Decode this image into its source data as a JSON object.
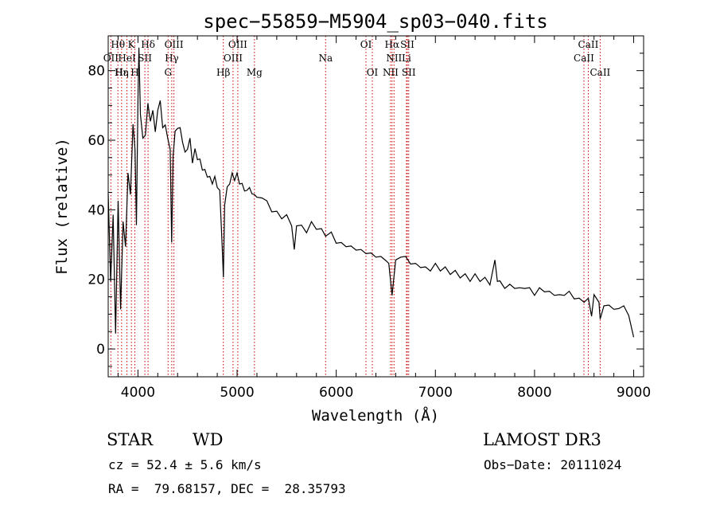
{
  "chart_data": {
    "type": "line",
    "title": "spec−55859−M5904_sp03−040.fits",
    "xlabel": "Wavelength (Å)",
    "ylabel": "Flux (relative)",
    "xlim": [
      3700,
      9100
    ],
    "ylim": [
      -8,
      90
    ],
    "x_ticks": [
      4000,
      5000,
      6000,
      7000,
      8000,
      9000
    ],
    "y_ticks": [
      0,
      20,
      40,
      60,
      80
    ],
    "series": [
      {
        "name": "spectrum",
        "x": [
          3700,
          3725,
          3750,
          3775,
          3800,
          3825,
          3850,
          3875,
          3900,
          3925,
          3950,
          3970,
          3985,
          4000,
          4010,
          4025,
          4050,
          4075,
          4100,
          4125,
          4150,
          4175,
          4200,
          4225,
          4250,
          4275,
          4300,
          4325,
          4340,
          4355,
          4375,
          4400,
          4425,
          4450,
          4475,
          4500,
          4525,
          4550,
          4575,
          4600,
          4625,
          4650,
          4675,
          4700,
          4725,
          4750,
          4775,
          4800,
          4825,
          4850,
          4862,
          4875,
          4900,
          4925,
          4950,
          4975,
          5000,
          5025,
          5050,
          5075,
          5100,
          5125,
          5150,
          5175,
          5200,
          5250,
          5300,
          5350,
          5400,
          5450,
          5500,
          5550,
          5577,
          5600,
          5650,
          5700,
          5750,
          5800,
          5850,
          5893,
          5950,
          6000,
          6050,
          6100,
          6150,
          6200,
          6250,
          6300,
          6350,
          6400,
          6450,
          6500,
          6530,
          6563,
          6600,
          6650,
          6700,
          6750,
          6800,
          6850,
          6900,
          6950,
          7000,
          7050,
          7100,
          7150,
          7200,
          7250,
          7300,
          7350,
          7400,
          7450,
          7500,
          7550,
          7600,
          7625,
          7650,
          7700,
          7750,
          7800,
          7850,
          7900,
          7950,
          8000,
          8050,
          8100,
          8150,
          8200,
          8250,
          8300,
          8350,
          8400,
          8450,
          8500,
          8542,
          8575,
          8600,
          8650,
          8662,
          8700,
          8750,
          8800,
          8850,
          8900,
          8950,
          9000
        ],
        "y": [
          44,
          20,
          38,
          5,
          42,
          12,
          36,
          30,
          50,
          45,
          64,
          58,
          35,
          72,
          86,
          68,
          60,
          62,
          70,
          66,
          68,
          63,
          68,
          72,
          63,
          65,
          60,
          58,
          30,
          56,
          62,
          64,
          63,
          60,
          56,
          58,
          60,
          54,
          57,
          55,
          54,
          52,
          51,
          50,
          49,
          48,
          49,
          47,
          45,
          30,
          20,
          42,
          46,
          48,
          50,
          49,
          50,
          48,
          47,
          46,
          45,
          47,
          44,
          45,
          43,
          44,
          42,
          40,
          39,
          38,
          38,
          36,
          28,
          36,
          35,
          34,
          36,
          35,
          34,
          33,
          33,
          31,
          30,
          30,
          29,
          29,
          28,
          28,
          27,
          27,
          26,
          26,
          24,
          16,
          25,
          27,
          26,
          25,
          24,
          24,
          23,
          23,
          24,
          23,
          23,
          22,
          22,
          21,
          21,
          20,
          21,
          20,
          20,
          19,
          25,
          20,
          19,
          18,
          18,
          18,
          17,
          18,
          17,
          16,
          17,
          17,
          16,
          16,
          15,
          16,
          16,
          15,
          14,
          14,
          14,
          10,
          15,
          14,
          8,
          13,
          12,
          12,
          11,
          13,
          9,
          4
        ]
      }
    ],
    "lines_top": [
      {
        "label": "Hθ",
        "x": 3798
      },
      {
        "label": "K",
        "x": 3934
      },
      {
        "label": "Hδ",
        "x": 4102
      },
      {
        "label": "OIII",
        "x": 4363
      },
      {
        "label": "OIII",
        "x": 5007
      },
      {
        "label": "OI",
        "x": 6300
      },
      {
        "label": "Hα",
        "x": 6563
      },
      {
        "label": "SII",
        "x": 6717
      },
      {
        "label": "CaII",
        "x": 8542
      }
    ],
    "lines_mid": [
      {
        "label": "OII",
        "x": 3727
      },
      {
        "label": "HeI",
        "x": 3889
      },
      {
        "label": "SII",
        "x": 4070
      },
      {
        "label": "Hγ",
        "x": 4341
      },
      {
        "label": "OIII",
        "x": 4959
      },
      {
        "label": "Na",
        "x": 5893
      },
      {
        "label": "NII",
        "x": 6583
      },
      {
        "label": "Li",
        "x": 6708
      },
      {
        "label": "CaII",
        "x": 8498
      }
    ],
    "lines_bot": [
      {
        "label": "Hε",
        "x": 3835
      },
      {
        "label": "Hη",
        "x": 3835
      },
      {
        "label": "H",
        "x": 3969
      },
      {
        "label": "G",
        "x": 4304
      },
      {
        "label": "Hβ",
        "x": 4861
      },
      {
        "label": "Mg",
        "x": 5175
      },
      {
        "label": "OI",
        "x": 6364
      },
      {
        "label": "NII",
        "x": 6548
      },
      {
        "label": "SII",
        "x": 6731
      },
      {
        "label": "CaII",
        "x": 8662
      }
    ],
    "line_marks": [
      3727,
      3798,
      3835,
      3889,
      3934,
      3969,
      4070,
      4102,
      4304,
      4341,
      4363,
      4861,
      4959,
      5007,
      5175,
      5893,
      6300,
      6364,
      6548,
      6563,
      6583,
      6708,
      6717,
      6731,
      8498,
      8542,
      8662
    ]
  },
  "info": {
    "class_label": "STAR",
    "subclass_label": "WD",
    "survey": "LAMOST DR3",
    "cz": "cz = 52.4 ± 5.6 km/s",
    "obs_date": "Obs−Date: 20111024",
    "coords": "RA =  79.68157, DEC =  28.35793"
  },
  "colors": {
    "spectrum": "#000000",
    "line_marker": "#cc0000",
    "axes": "#000000"
  }
}
